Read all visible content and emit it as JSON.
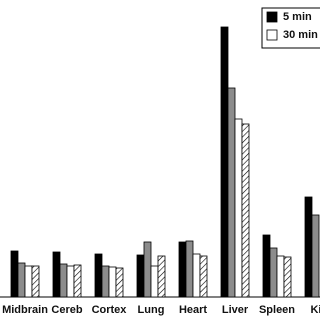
{
  "chart_data": {
    "type": "bar",
    "categories": [
      "Midbrain",
      "Cereb",
      "Cortex",
      "Lung",
      "Heart",
      "Liver",
      "Spleen",
      "Kie"
    ],
    "series": [
      {
        "name": "5 min",
        "color": "#000000",
        "values": [
          46,
          45,
          43,
          42,
          55,
          270,
          62,
          100
        ]
      },
      {
        "color": "#8c8c8c",
        "values": [
          34,
          33,
          31,
          55,
          56,
          209,
          49,
          82
        ]
      },
      {
        "name": "30 min",
        "color": "#ffffff",
        "values": [
          31,
          31,
          30,
          31,
          43,
          178,
          41,
          null
        ]
      },
      {
        "color": "#ffffff",
        "hatch": true,
        "values": [
          31,
          32,
          29,
          41,
          41,
          173,
          40,
          null
        ]
      }
    ],
    "ylim": [
      0,
      280
    ]
  }
}
